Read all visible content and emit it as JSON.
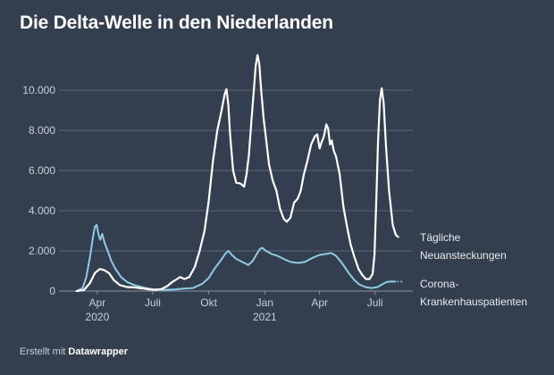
{
  "title": "Die Delta-Welle in den Niederlanden",
  "footer": {
    "prefix": "Erstellt mit",
    "brand": "Datawrapper"
  },
  "colors": {
    "background": "#333f4f",
    "grid": "#5b6677",
    "cases": "#ffffff",
    "hospital": "#8fcbe2",
    "text": "#c9ced6"
  },
  "chart_data": {
    "type": "line",
    "title": "Die Delta-Welle in den Niederlanden",
    "xlabel": "",
    "ylabel": "",
    "x_range": [
      "2020-02-01",
      "2021-09-01"
    ],
    "ylim": [
      0,
      12000
    ],
    "grid": true,
    "yticks": [
      {
        "value": 0,
        "label": "0"
      },
      {
        "value": 2000,
        "label": "2.000"
      },
      {
        "value": 4000,
        "label": "4.000"
      },
      {
        "value": 6000,
        "label": "6.000"
      },
      {
        "value": 8000,
        "label": "8.000"
      },
      {
        "value": 10000,
        "label": "10.000"
      }
    ],
    "xticks": [
      {
        "date": "2020-04-01",
        "label": "Apr",
        "sublabel": "2020"
      },
      {
        "date": "2020-07-01",
        "label": "Juli",
        "sublabel": ""
      },
      {
        "date": "2020-10-01",
        "label": "Okt",
        "sublabel": ""
      },
      {
        "date": "2021-01-01",
        "label": "Jan",
        "sublabel": "2021"
      },
      {
        "date": "2021-04-01",
        "label": "Apr",
        "sublabel": ""
      },
      {
        "date": "2021-07-01",
        "label": "Juli",
        "sublabel": ""
      }
    ],
    "series": [
      {
        "name": "Tägliche Neuansteckungen",
        "label_lines": [
          "Tägliche",
          "Neuansteckungen"
        ],
        "color": "#ffffff",
        "points": [
          [
            "2020-02-27",
            0
          ],
          [
            "2020-03-10",
            50
          ],
          [
            "2020-03-20",
            400
          ],
          [
            "2020-03-28",
            900
          ],
          [
            "2020-04-05",
            1100
          ],
          [
            "2020-04-12",
            1050
          ],
          [
            "2020-04-20",
            900
          ],
          [
            "2020-04-28",
            550
          ],
          [
            "2020-05-08",
            300
          ],
          [
            "2020-05-20",
            200
          ],
          [
            "2020-06-01",
            180
          ],
          [
            "2020-06-15",
            130
          ],
          [
            "2020-06-25",
            80
          ],
          [
            "2020-07-05",
            60
          ],
          [
            "2020-07-15",
            100
          ],
          [
            "2020-07-25",
            250
          ],
          [
            "2020-08-02",
            450
          ],
          [
            "2020-08-10",
            600
          ],
          [
            "2020-08-15",
            700
          ],
          [
            "2020-08-22",
            600
          ],
          [
            "2020-08-30",
            700
          ],
          [
            "2020-09-08",
            1200
          ],
          [
            "2020-09-16",
            2000
          ],
          [
            "2020-09-24",
            3000
          ],
          [
            "2020-10-01",
            4500
          ],
          [
            "2020-10-08",
            6500
          ],
          [
            "2020-10-15",
            8000
          ],
          [
            "2020-10-22",
            9000
          ],
          [
            "2020-10-27",
            9800
          ],
          [
            "2020-10-30",
            10050
          ],
          [
            "2020-11-02",
            9300
          ],
          [
            "2020-11-05",
            7800
          ],
          [
            "2020-11-10",
            6000
          ],
          [
            "2020-11-15",
            5400
          ],
          [
            "2020-11-22",
            5350
          ],
          [
            "2020-11-28",
            5200
          ],
          [
            "2020-12-02",
            5800
          ],
          [
            "2020-12-06",
            6800
          ],
          [
            "2020-12-10",
            8500
          ],
          [
            "2020-12-14",
            10000
          ],
          [
            "2020-12-17",
            11200
          ],
          [
            "2020-12-20",
            11750
          ],
          [
            "2020-12-23",
            11300
          ],
          [
            "2020-12-26",
            10000
          ],
          [
            "2020-12-30",
            8600
          ],
          [
            "2021-01-03",
            7600
          ],
          [
            "2021-01-08",
            6300
          ],
          [
            "2021-01-14",
            5500
          ],
          [
            "2021-01-20",
            5000
          ],
          [
            "2021-01-26",
            4100
          ],
          [
            "2021-02-01",
            3600
          ],
          [
            "2021-02-06",
            3450
          ],
          [
            "2021-02-12",
            3650
          ],
          [
            "2021-02-18",
            4400
          ],
          [
            "2021-02-24",
            4600
          ],
          [
            "2021-03-01",
            5000
          ],
          [
            "2021-03-06",
            5800
          ],
          [
            "2021-03-12",
            6500
          ],
          [
            "2021-03-18",
            7300
          ],
          [
            "2021-03-24",
            7700
          ],
          [
            "2021-03-28",
            7800
          ],
          [
            "2021-04-01",
            7100
          ],
          [
            "2021-04-04",
            7400
          ],
          [
            "2021-04-08",
            7700
          ],
          [
            "2021-04-12",
            8300
          ],
          [
            "2021-04-15",
            8100
          ],
          [
            "2021-04-18",
            7300
          ],
          [
            "2021-04-21",
            7500
          ],
          [
            "2021-04-24",
            7000
          ],
          [
            "2021-04-28",
            6700
          ],
          [
            "2021-05-04",
            5800
          ],
          [
            "2021-05-10",
            4200
          ],
          [
            "2021-05-16",
            3200
          ],
          [
            "2021-05-22",
            2300
          ],
          [
            "2021-05-28",
            1700
          ],
          [
            "2021-06-04",
            1100
          ],
          [
            "2021-06-10",
            800
          ],
          [
            "2021-06-16",
            600
          ],
          [
            "2021-06-22",
            600
          ],
          [
            "2021-06-27",
            850
          ],
          [
            "2021-06-30",
            1800
          ],
          [
            "2021-07-03",
            4500
          ],
          [
            "2021-07-06",
            7500
          ],
          [
            "2021-07-09",
            9500
          ],
          [
            "2021-07-12",
            10100
          ],
          [
            "2021-07-15",
            9400
          ],
          [
            "2021-07-19",
            7200
          ],
          [
            "2021-07-24",
            5000
          ],
          [
            "2021-07-30",
            3300
          ],
          [
            "2021-08-04",
            2800
          ],
          [
            "2021-08-08",
            2700
          ]
        ]
      },
      {
        "name": "Corona-Krankenhauspatienten",
        "label_lines": [
          "Corona-",
          "Krankenhauspatienten"
        ],
        "color": "#8fcbe2",
        "points": [
          [
            "2020-02-27",
            0
          ],
          [
            "2020-03-08",
            150
          ],
          [
            "2020-03-14",
            700
          ],
          [
            "2020-03-20",
            1700
          ],
          [
            "2020-03-25",
            2700
          ],
          [
            "2020-03-28",
            3200
          ],
          [
            "2020-03-31",
            3300
          ],
          [
            "2020-04-03",
            2800
          ],
          [
            "2020-04-06",
            2550
          ],
          [
            "2020-04-09",
            2850
          ],
          [
            "2020-04-13",
            2400
          ],
          [
            "2020-04-18",
            2000
          ],
          [
            "2020-04-24",
            1500
          ],
          [
            "2020-05-01",
            1100
          ],
          [
            "2020-05-10",
            700
          ],
          [
            "2020-05-20",
            450
          ],
          [
            "2020-06-01",
            300
          ],
          [
            "2020-06-15",
            180
          ],
          [
            "2020-07-01",
            90
          ],
          [
            "2020-07-20",
            60
          ],
          [
            "2020-08-05",
            80
          ],
          [
            "2020-08-20",
            120
          ],
          [
            "2020-09-05",
            150
          ],
          [
            "2020-09-20",
            350
          ],
          [
            "2020-10-01",
            650
          ],
          [
            "2020-10-10",
            1100
          ],
          [
            "2020-10-20",
            1500
          ],
          [
            "2020-10-28",
            1850
          ],
          [
            "2020-11-02",
            2000
          ],
          [
            "2020-11-08",
            1800
          ],
          [
            "2020-11-15",
            1600
          ],
          [
            "2020-11-25",
            1450
          ],
          [
            "2020-12-05",
            1300
          ],
          [
            "2020-12-12",
            1500
          ],
          [
            "2020-12-18",
            1800
          ],
          [
            "2020-12-24",
            2100
          ],
          [
            "2020-12-28",
            2150
          ],
          [
            "2021-01-03",
            2000
          ],
          [
            "2021-01-12",
            1850
          ],
          [
            "2021-01-22",
            1750
          ],
          [
            "2021-02-01",
            1600
          ],
          [
            "2021-02-12",
            1450
          ],
          [
            "2021-02-25",
            1400
          ],
          [
            "2021-03-08",
            1450
          ],
          [
            "2021-03-20",
            1650
          ],
          [
            "2021-04-01",
            1800
          ],
          [
            "2021-04-12",
            1850
          ],
          [
            "2021-04-20",
            1900
          ],
          [
            "2021-04-28",
            1750
          ],
          [
            "2021-05-05",
            1500
          ],
          [
            "2021-05-12",
            1200
          ],
          [
            "2021-05-20",
            850
          ],
          [
            "2021-05-28",
            550
          ],
          [
            "2021-06-05",
            330
          ],
          [
            "2021-06-15",
            200
          ],
          [
            "2021-06-25",
            150
          ],
          [
            "2021-07-05",
            200
          ],
          [
            "2021-07-12",
            320
          ],
          [
            "2021-07-20",
            450
          ],
          [
            "2021-07-28",
            480
          ],
          [
            "2021-08-03",
            470
          ]
        ]
      }
    ]
  }
}
